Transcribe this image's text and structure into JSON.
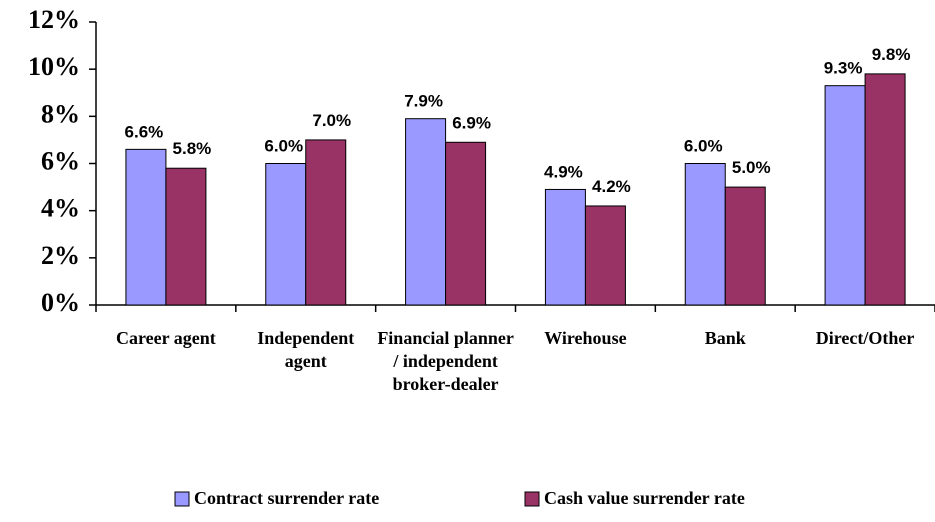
{
  "chart_data": {
    "type": "bar",
    "categories": [
      "Career agent",
      "Independent agent",
      "Financial planner / independent broker-dealer",
      "Wirehouse",
      "Bank",
      "Direct/Other"
    ],
    "series": [
      {
        "name": "Contract surrender rate",
        "color": "#9999ff",
        "values": [
          6.6,
          6.0,
          7.9,
          4.9,
          6.0,
          9.3
        ],
        "value_labels": [
          "6.6%",
          "6.0%",
          "7.9%",
          "4.9%",
          "6.0%",
          "9.3%"
        ]
      },
      {
        "name": "Cash value surrender rate",
        "color": "#993366",
        "values": [
          5.8,
          7.0,
          6.9,
          4.2,
          5.0,
          9.8
        ],
        "value_labels": [
          "5.8%",
          "7.0%",
          "6.9%",
          "4.2%",
          "5.0%",
          "9.8%"
        ]
      }
    ],
    "ylim": [
      0,
      12
    ],
    "yticks": [
      {
        "value": 0,
        "label": "0%"
      },
      {
        "value": 2,
        "label": "2%"
      },
      {
        "value": 4,
        "label": "4%"
      },
      {
        "value": 6,
        "label": "6%"
      },
      {
        "value": 8,
        "label": "8%"
      },
      {
        "value": 10,
        "label": "10%"
      },
      {
        "value": 12,
        "label": "12%"
      }
    ]
  }
}
